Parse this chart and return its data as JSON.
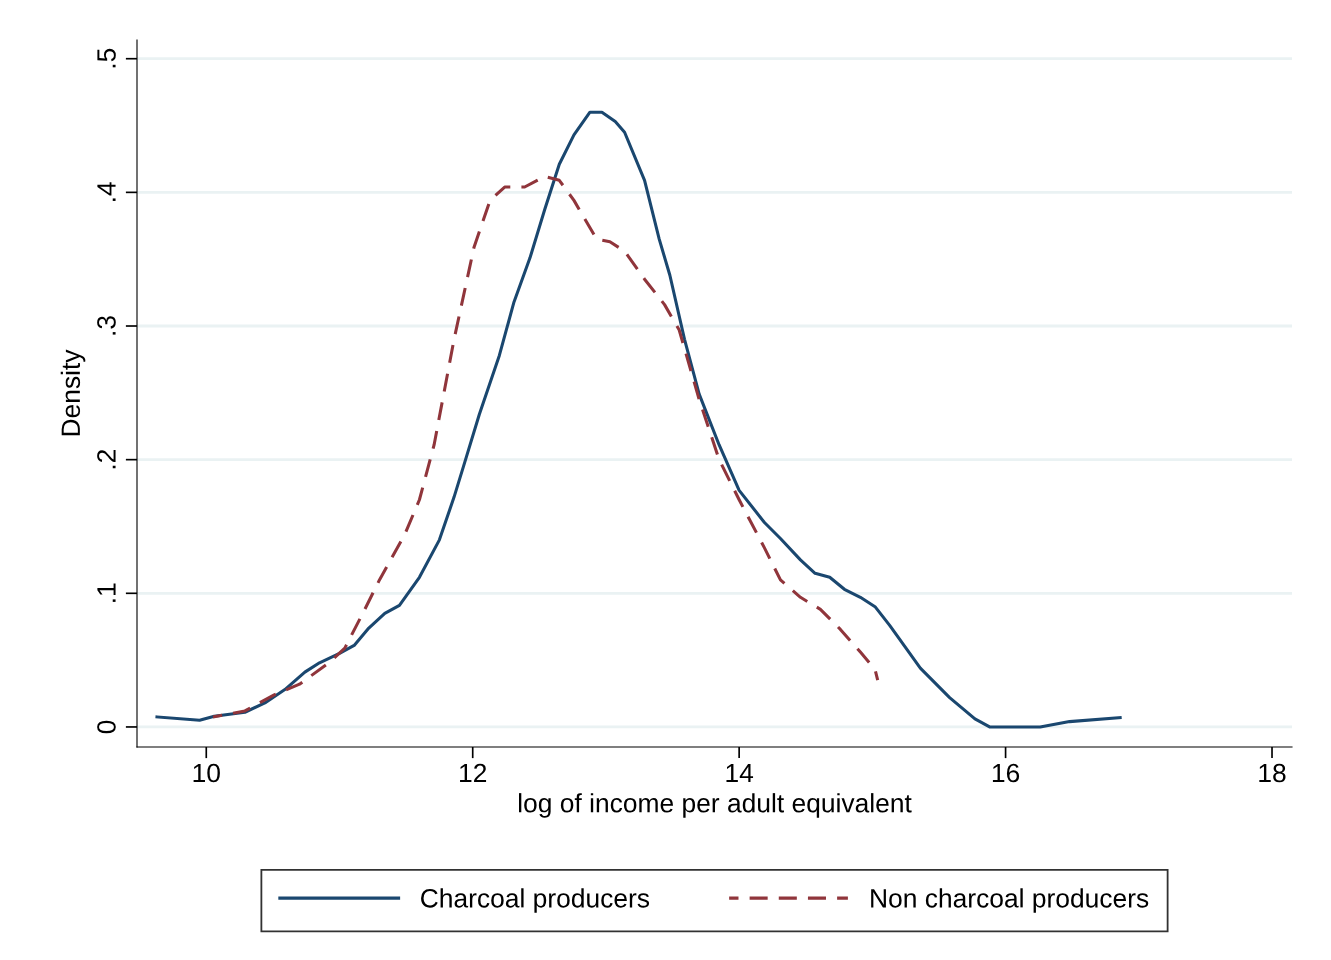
{
  "chart_data": {
    "type": "line",
    "xlabel": "log of income per adult equivalent",
    "ylabel": "Density",
    "xlim": [
      9.48,
      18.15
    ],
    "ylim": [
      -0.015,
      0.514
    ],
    "xticks": [
      10,
      12,
      14,
      16,
      18
    ],
    "yticks": [
      {
        "value": 0,
        "label": "0"
      },
      {
        "value": 0.1,
        "label": ".1"
      },
      {
        "value": 0.2,
        "label": ".2"
      },
      {
        "value": 0.3,
        "label": ".3"
      },
      {
        "value": 0.4,
        "label": ".4"
      },
      {
        "value": 0.5,
        "label": ".5"
      }
    ],
    "grid": "y",
    "legend": "bottom",
    "series": [
      {
        "name": "Charcoal producers",
        "color": "#1a476f",
        "line_style": "solid",
        "x": [
          9.63,
          9.95,
          10.06,
          10.29,
          10.44,
          10.59,
          10.74,
          10.85,
          11.0,
          11.11,
          11.22,
          11.34,
          11.45,
          11.6,
          11.75,
          11.86,
          11.94,
          12.05,
          12.2,
          12.31,
          12.43,
          12.54,
          12.65,
          12.76,
          12.88,
          12.97,
          13.07,
          13.14,
          13.29,
          13.4,
          13.48,
          13.59,
          13.7,
          13.85,
          14.0,
          14.19,
          14.31,
          14.46,
          14.57,
          14.68,
          14.79,
          14.91,
          15.02,
          15.13,
          15.36,
          15.58,
          15.77,
          15.88,
          16.26,
          16.48,
          16.86
        ],
        "values": [
          0.0075,
          0.005,
          0.008,
          0.011,
          0.018,
          0.028,
          0.041,
          0.048,
          0.055,
          0.061,
          0.074,
          0.085,
          0.091,
          0.112,
          0.14,
          0.172,
          0.198,
          0.234,
          0.278,
          0.318,
          0.351,
          0.387,
          0.421,
          0.443,
          0.46,
          0.46,
          0.453,
          0.445,
          0.409,
          0.365,
          0.338,
          0.29,
          0.249,
          0.211,
          0.177,
          0.153,
          0.141,
          0.125,
          0.115,
          0.112,
          0.103,
          0.097,
          0.09,
          0.076,
          0.044,
          0.022,
          0.006,
          0.0,
          0.0,
          0.004,
          0.007
        ]
      },
      {
        "name": "Non charcoal producers",
        "color": "#90353b",
        "line_style": "dashed",
        "x": [
          10.05,
          10.29,
          10.51,
          10.7,
          10.92,
          11.04,
          11.19,
          11.3,
          11.49,
          11.6,
          11.71,
          11.86,
          12.01,
          12.13,
          12.24,
          12.39,
          12.54,
          12.65,
          12.76,
          12.93,
          13.03,
          13.14,
          13.29,
          13.44,
          13.55,
          13.7,
          13.85,
          14.0,
          14.19,
          14.31,
          14.46,
          14.61,
          14.76,
          14.91,
          15.02,
          15.04
        ],
        "values": [
          0.0075,
          0.012,
          0.024,
          0.032,
          0.048,
          0.059,
          0.088,
          0.11,
          0.144,
          0.17,
          0.211,
          0.29,
          0.359,
          0.394,
          0.404,
          0.404,
          0.412,
          0.409,
          0.394,
          0.365,
          0.363,
          0.356,
          0.335,
          0.316,
          0.297,
          0.245,
          0.2,
          0.17,
          0.134,
          0.11,
          0.097,
          0.088,
          0.073,
          0.056,
          0.043,
          0.035
        ]
      }
    ]
  }
}
